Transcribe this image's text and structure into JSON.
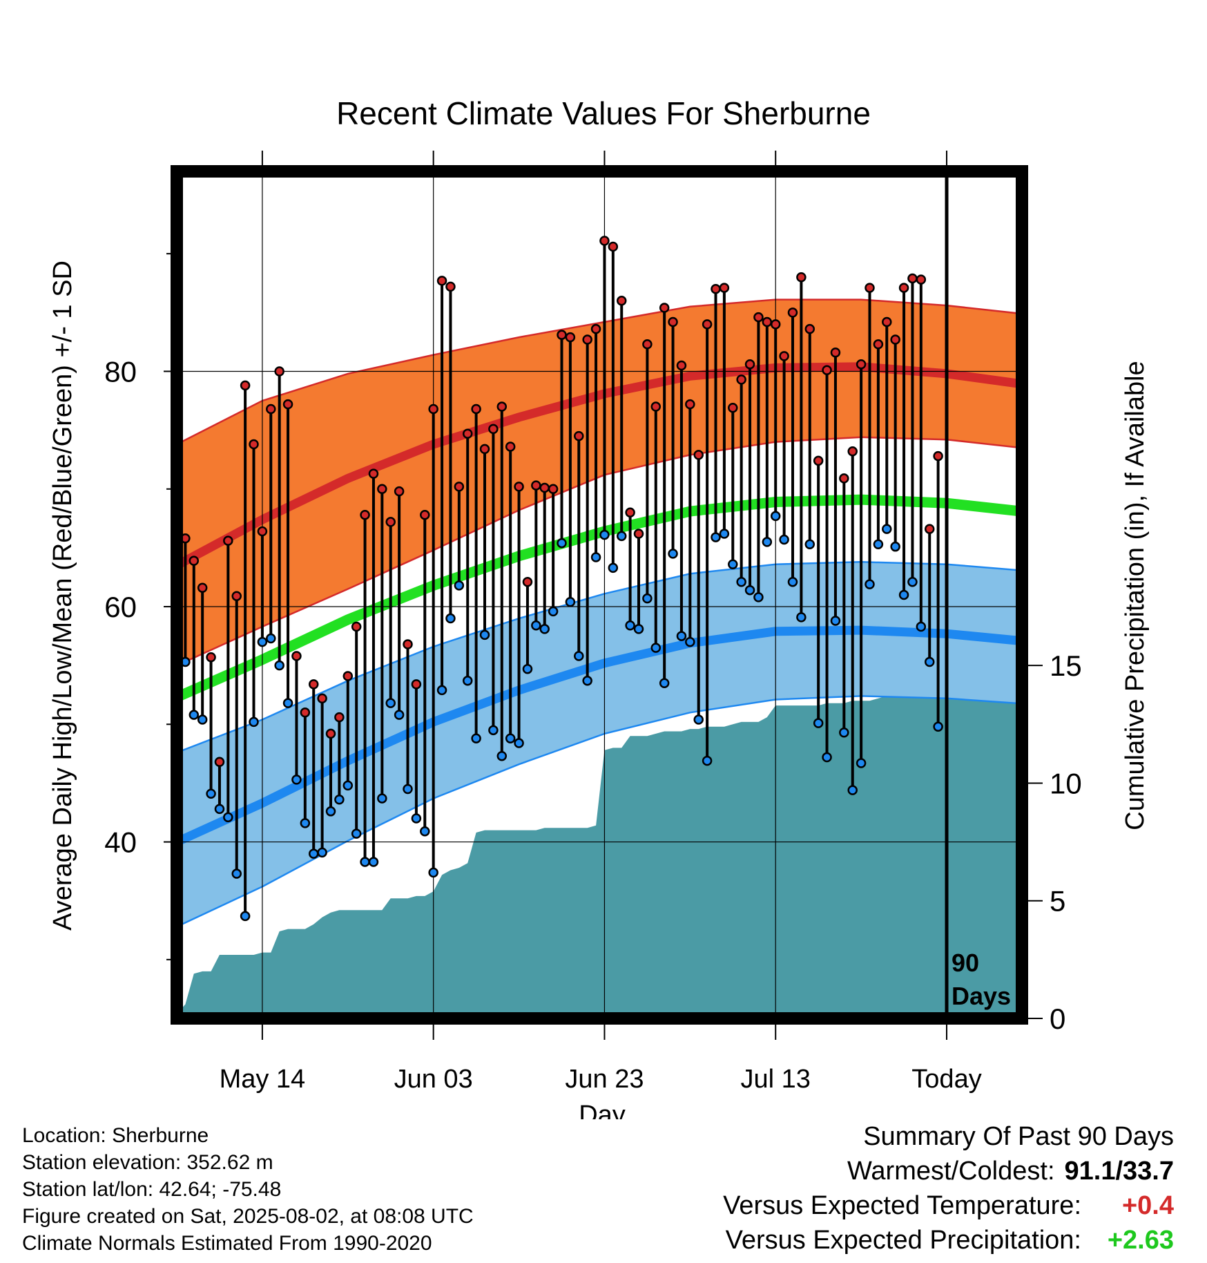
{
  "chart_data": {
    "type": "line",
    "title": "Recent Climate Values For Sherburne",
    "xlabel": "Day",
    "ylabel": "Average Daily High/Low/Mean (Red/Blue/Green) +/- 1 SD",
    "y2label": "Cumulative Precipitation (in), If Available",
    "xlim": [
      0,
      90
    ],
    "ylim": [
      25,
      97
    ],
    "y2lim": [
      0,
      36
    ],
    "x_ticks": [
      {
        "x": 10,
        "label": "May 14"
      },
      {
        "x": 30,
        "label": "Jun 03"
      },
      {
        "x": 50,
        "label": "Jun 23"
      },
      {
        "x": 70,
        "label": "Jul 13"
      },
      {
        "x": 90,
        "label": "Today"
      }
    ],
    "y_ticks": [
      40,
      60,
      80
    ],
    "y_minor_ticks": [
      30,
      50,
      70,
      90
    ],
    "y2_ticks": [
      0,
      5,
      10,
      15
    ],
    "grid": true,
    "annotation": {
      "x": 90,
      "lines": [
        "90",
        "Days"
      ]
    },
    "colors": {
      "high_band": "#f47a30",
      "high_line": "#d42a2a",
      "low_band": "#84c0e8",
      "low_line": "#1e88f0",
      "mean_line": "#22e022",
      "precip": "#4b9ba5",
      "high_dot": "#d42a2a",
      "low_dot": "#1e88f0"
    },
    "normals": {
      "x": [
        0,
        10,
        20,
        30,
        40,
        50,
        60,
        70,
        80,
        90,
        100
      ],
      "high_mean": [
        63.5,
        67.4,
        70.9,
        73.8,
        76.1,
        78.1,
        79.6,
        80.3,
        80.4,
        79.8,
        78.8
      ],
      "high_upper": [
        73.8,
        77.5,
        79.8,
        81.4,
        82.9,
        84.2,
        85.5,
        86.1,
        86.1,
        85.6,
        84.8
      ],
      "high_lower": [
        55.0,
        58.3,
        61.5,
        64.8,
        68.2,
        71.2,
        72.9,
        74.0,
        74.4,
        74.2,
        73.4
      ],
      "mean": [
        52.3,
        55.5,
        58.9,
        61.8,
        64.3,
        66.4,
        68.1,
        68.9,
        69.1,
        68.8,
        68.0
      ],
      "low_mean": [
        40.0,
        43.3,
        46.9,
        50.2,
        52.9,
        55.2,
        56.9,
        57.9,
        58.0,
        57.7,
        57.0
      ],
      "low_upper": [
        47.6,
        50.4,
        53.7,
        56.6,
        59.0,
        61.1,
        62.8,
        63.6,
        63.8,
        63.6,
        63.0
      ],
      "low_lower": [
        32.8,
        36.2,
        40.1,
        43.7,
        46.6,
        49.2,
        51.0,
        52.1,
        52.4,
        52.2,
        51.7
      ]
    },
    "daily": {
      "x": [
        0,
        1,
        2,
        3,
        4,
        5,
        6,
        7,
        8,
        9,
        10,
        11,
        12,
        13,
        14,
        15,
        16,
        17,
        18,
        19,
        20,
        21,
        22,
        23,
        24,
        25,
        26,
        27,
        28,
        29,
        30,
        31,
        32,
        33,
        34,
        35,
        36,
        37,
        38,
        39,
        40,
        41,
        42,
        43,
        44,
        45,
        46,
        47,
        48,
        49,
        50,
        51,
        52,
        53,
        54,
        55,
        56,
        57,
        58,
        59,
        60,
        61,
        62,
        63,
        64,
        65,
        66,
        67,
        68,
        69,
        70,
        71,
        72,
        73,
        74,
        75,
        76,
        77,
        78,
        79,
        80,
        81,
        82,
        83,
        84,
        85,
        86,
        87,
        88,
        89
      ],
      "high": [
        59.3,
        65.8,
        63.9,
        61.6,
        55.7,
        46.8,
        65.6,
        60.9,
        78.8,
        73.8,
        66.4,
        76.8,
        80.0,
        77.2,
        55.8,
        51.0,
        53.4,
        52.2,
        49.2,
        50.6,
        54.1,
        58.3,
        67.8,
        71.3,
        70.0,
        67.2,
        69.8,
        56.8,
        53.4,
        67.8,
        76.8,
        87.7,
        87.2,
        70.2,
        74.7,
        76.8,
        73.4,
        75.1,
        77.0,
        73.6,
        70.2,
        62.1,
        70.3,
        70.1,
        70.0,
        83.1,
        82.9,
        74.5,
        82.7,
        83.6,
        91.1,
        90.6,
        86.0,
        68.0,
        66.2,
        82.3,
        77.0,
        85.4,
        84.2,
        80.5,
        77.2,
        72.9,
        84.0,
        87.0,
        87.1,
        76.9,
        79.3,
        80.6,
        84.6,
        84.2,
        84.0,
        81.3,
        85.0,
        88.0,
        83.6,
        72.4,
        80.1,
        81.6,
        70.9,
        73.2,
        80.6,
        87.1,
        82.3,
        84.2,
        82.7,
        87.1,
        87.9,
        87.8,
        66.6,
        72.8
      ],
      "low": [
        49.3,
        55.3,
        50.8,
        50.4,
        44.1,
        42.8,
        42.1,
        37.3,
        33.7,
        50.2,
        57.0,
        57.3,
        55.0,
        51.8,
        45.3,
        41.6,
        39.0,
        39.1,
        42.6,
        43.6,
        44.8,
        40.7,
        38.3,
        38.3,
        43.7,
        51.8,
        50.8,
        44.5,
        42.0,
        40.9,
        37.4,
        52.9,
        59.0,
        61.8,
        53.7,
        48.8,
        57.6,
        49.5,
        47.3,
        48.8,
        48.4,
        54.7,
        58.4,
        58.1,
        59.6,
        65.4,
        60.4,
        55.8,
        53.7,
        64.2,
        66.1,
        63.3,
        66.0,
        58.4,
        58.1,
        60.7,
        56.5,
        53.5,
        64.5,
        57.5,
        57.0,
        50.4,
        46.9,
        65.9,
        66.2,
        63.6,
        62.1,
        61.4,
        60.8,
        65.5,
        67.7,
        65.7,
        62.1,
        59.1,
        65.3,
        50.1,
        47.2,
        58.8,
        49.3,
        44.4,
        46.7,
        61.9,
        65.3,
        66.6,
        65.1,
        61.0,
        62.1,
        58.3,
        55.3,
        49.8
      ]
    },
    "precip": {
      "x": [
        0,
        1,
        2,
        3,
        4,
        5,
        6,
        7,
        8,
        9,
        10,
        11,
        12,
        13,
        14,
        15,
        16,
        17,
        18,
        19,
        20,
        21,
        22,
        23,
        24,
        25,
        26,
        27,
        28,
        29,
        30,
        31,
        32,
        33,
        34,
        35,
        36,
        37,
        38,
        39,
        40,
        41,
        42,
        43,
        44,
        45,
        46,
        47,
        48,
        49,
        50,
        51,
        52,
        53,
        54,
        55,
        56,
        57,
        58,
        59,
        60,
        61,
        62,
        63,
        64,
        65,
        66,
        67,
        68,
        69,
        70,
        71,
        72,
        73,
        74,
        75,
        76,
        77,
        78,
        79,
        80,
        81,
        82,
        83,
        84,
        85,
        86,
        87,
        88,
        89,
        90
      ],
      "values": [
        0.2,
        0.6,
        1.9,
        2.0,
        2.0,
        2.7,
        2.7,
        2.7,
        2.7,
        2.7,
        2.8,
        2.8,
        3.7,
        3.8,
        3.8,
        3.8,
        4.0,
        4.3,
        4.5,
        4.6,
        4.6,
        4.6,
        4.6,
        4.6,
        4.6,
        5.1,
        5.1,
        5.1,
        5.2,
        5.2,
        5.4,
        6.1,
        6.3,
        6.4,
        6.6,
        7.9,
        8.0,
        8.0,
        8.0,
        8.0,
        8.0,
        8.0,
        8.0,
        8.1,
        8.1,
        8.1,
        8.1,
        8.1,
        8.1,
        8.2,
        11.4,
        11.5,
        11.5,
        12.0,
        12.0,
        12.0,
        12.1,
        12.2,
        12.2,
        12.2,
        12.3,
        12.3,
        12.4,
        12.4,
        12.4,
        12.5,
        12.6,
        12.6,
        12.6,
        12.8,
        13.3,
        13.3,
        13.3,
        13.3,
        13.3,
        13.3,
        13.4,
        13.4,
        13.4,
        13.5,
        13.5,
        13.5,
        13.6,
        13.7,
        13.8,
        13.8,
        14.0,
        14.2,
        14.7,
        14.9,
        15.0
      ]
    }
  },
  "info": {
    "location": "Location: Sherburne",
    "elevation": "Station elevation: 352.62 m",
    "latlon": "Station lat/lon: 42.64; -75.48",
    "created": "Figure created on Sat, 2025-08-02, at 08:08 UTC",
    "normals": "Climate Normals Estimated From 1990-2020"
  },
  "summary": {
    "title": "Summary Of Past 90 Days",
    "warmest_label": "Warmest/Coldest:",
    "warmest_value": "91.1/33.7",
    "temp_label": "Versus Expected Temperature:",
    "temp_value": "+0.4",
    "temp_color": "#d42a2a",
    "precip_label": "Versus Expected Precipitation:",
    "precip_value": "+2.63",
    "precip_color": "#1ec81e"
  }
}
